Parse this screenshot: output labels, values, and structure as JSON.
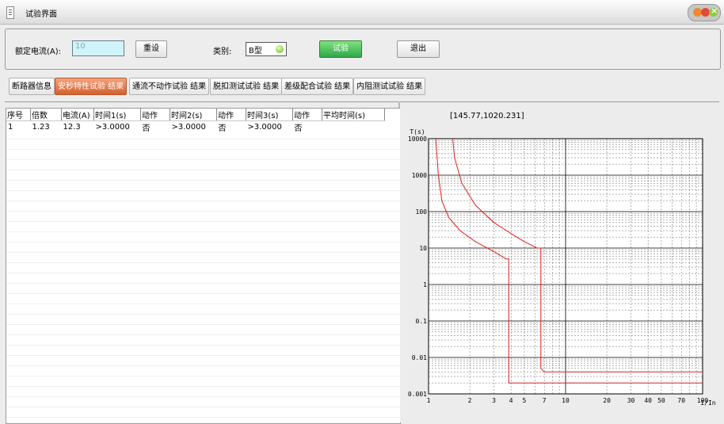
{
  "window": {
    "title": "试验界面"
  },
  "top": {
    "rated_current_label": "额定电流(A):",
    "rated_current_value": "10",
    "reset_label": "重设",
    "category_label": "类别:",
    "category_value": "B型",
    "test_label": "试验",
    "exit_label": "退出"
  },
  "tabs": [
    {
      "label": "断路器信息"
    },
    {
      "label": "安秒特性试验 结果"
    },
    {
      "label": "通流不动作试验 结果"
    },
    {
      "label": "脱扣测试试验 结果"
    },
    {
      "label": "差级配合试验 结果"
    },
    {
      "label": "内阻测试试验 结果"
    }
  ],
  "table": {
    "headers": [
      "序号",
      "倍数",
      "电流(A)",
      "时间1(s)",
      "动作",
      "时间2(s)",
      "动作",
      "时间3(s)",
      "动作",
      "平均时间(s)"
    ],
    "rows": [
      [
        "1",
        "1.23",
        "12.3",
        ">3.0000",
        "否",
        ">3.0000",
        "否",
        ">3.0000",
        "否",
        ""
      ]
    ]
  },
  "chart_data": {
    "type": "line",
    "title": "",
    "cursor_readout": "[145.77,1020.231]",
    "ylabel": "T(s)",
    "xlabel": "I/In",
    "x_scale": "log",
    "y_scale": "log",
    "xlim": [
      1,
      100
    ],
    "ylim": [
      0.001,
      10000
    ],
    "x_ticks": [
      "1",
      "2",
      "3",
      "4",
      "5",
      "7",
      "10",
      "20",
      "30",
      "40",
      "50",
      "70",
      "100"
    ],
    "y_ticks": [
      "0.001",
      "0.01",
      "0.1",
      "1",
      "10",
      "100",
      "1000",
      "10000"
    ],
    "grid": true,
    "series": [
      {
        "x": [
          1.13,
          1.18,
          1.25,
          1.4,
          1.7,
          2.2,
          3.0,
          3.7,
          3.85,
          3.85,
          4.2,
          5,
          10,
          100
        ],
        "y": [
          10000,
          1000,
          200,
          70,
          30,
          15,
          8,
          5,
          5,
          0.002,
          0.002,
          0.002,
          0.002,
          0.002
        ]
      },
      {
        "x": [
          1.5,
          1.55,
          1.75,
          2.2,
          3.0,
          4.0,
          5.0,
          6.2,
          6.6,
          6.6,
          7.0,
          10,
          100
        ],
        "y": [
          10000,
          3000,
          600,
          150,
          50,
          25,
          15,
          10,
          10,
          0.005,
          0.004,
          0.004,
          0.004
        ]
      }
    ],
    "colors": {
      "curve": "#e02020",
      "major_grid": "#000000",
      "minor_grid": "#666666"
    }
  }
}
